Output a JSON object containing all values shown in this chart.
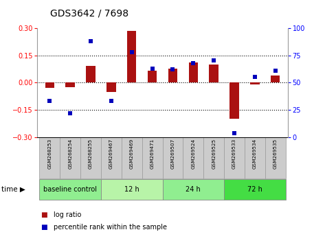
{
  "title": "GDS3642 / 7698",
  "samples": [
    "GSM268253",
    "GSM268254",
    "GSM268255",
    "GSM269467",
    "GSM269469",
    "GSM269471",
    "GSM269507",
    "GSM269524",
    "GSM269525",
    "GSM269533",
    "GSM269534",
    "GSM269535"
  ],
  "log_ratio": [
    -0.03,
    -0.025,
    0.09,
    -0.05,
    0.285,
    0.065,
    0.075,
    0.11,
    0.1,
    -0.2,
    -0.01,
    0.04
  ],
  "percentile_rank": [
    33,
    22,
    88,
    33,
    78,
    63,
    62,
    68,
    70,
    4,
    55,
    61
  ],
  "groups": [
    {
      "label": "baseline control",
      "start": 0,
      "end": 3,
      "color": "#90ee90"
    },
    {
      "label": "12 h",
      "start": 3,
      "end": 6,
      "color": "#b8f4a8"
    },
    {
      "label": "24 h",
      "start": 6,
      "end": 9,
      "color": "#90ee90"
    },
    {
      "label": "72 h",
      "start": 9,
      "end": 12,
      "color": "#44dd44"
    }
  ],
  "bar_color": "#aa1111",
  "dot_color": "#0000bb",
  "ylim_left": [
    -0.3,
    0.3
  ],
  "ylim_right": [
    0,
    100
  ],
  "yticks_left": [
    -0.3,
    -0.15,
    0.0,
    0.15,
    0.3
  ],
  "yticks_right": [
    0,
    25,
    50,
    75,
    100
  ],
  "hlines": [
    -0.15,
    0.0,
    0.15
  ],
  "bar_width": 0.45,
  "sample_box_color": "#cccccc",
  "sample_box_edge": "#999999",
  "time_label": "time ▶"
}
